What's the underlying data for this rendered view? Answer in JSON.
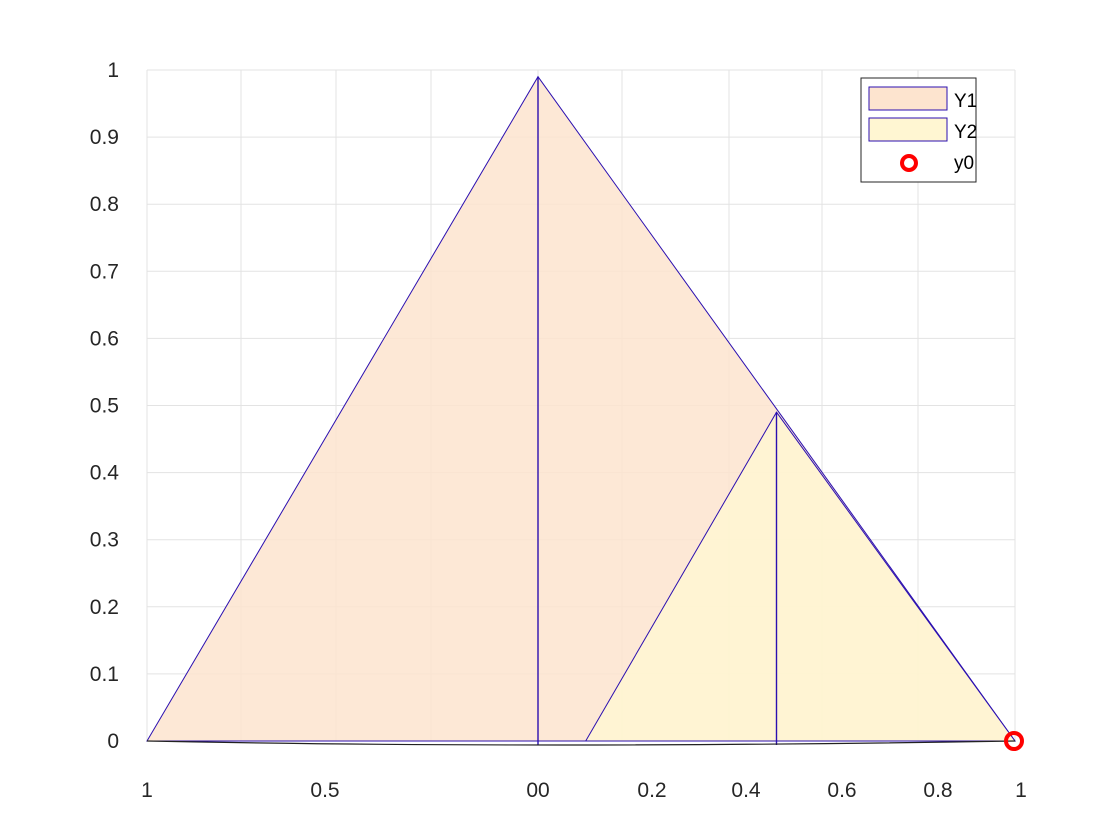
{
  "chart_data": {
    "type": "area",
    "title": "",
    "xlabel": "",
    "ylabel": "",
    "ylim": [
      0,
      1
    ],
    "y_ticks": [
      "0",
      "0.1",
      "0.2",
      "0.3",
      "0.4",
      "0.5",
      "0.6",
      "0.7",
      "0.8",
      "0.9",
      "1"
    ],
    "x_ticks": [
      "1",
      "0.5",
      "00",
      "0.2",
      "0.4",
      "0.6",
      "0.8",
      "1"
    ],
    "grid": true,
    "legend_placement": "top-right",
    "series": [
      {
        "name": "Y1",
        "kind": "triangle",
        "points": [
          [
            -1,
            0
          ],
          [
            0,
            0.99
          ],
          [
            1,
            0
          ]
        ],
        "fill": "#fde4cf",
        "edge": "#2b0fb0"
      },
      {
        "name": "Y2",
        "kind": "triangle",
        "points": [
          [
            0.1,
            0
          ],
          [
            0.5,
            0.49
          ],
          [
            1,
            0
          ]
        ],
        "fill": "#fff6d2",
        "edge": "#2b0fb0"
      },
      {
        "name": "y0",
        "kind": "marker",
        "points": [
          [
            1,
            0
          ]
        ],
        "color": "#ff0000"
      }
    ]
  }
}
